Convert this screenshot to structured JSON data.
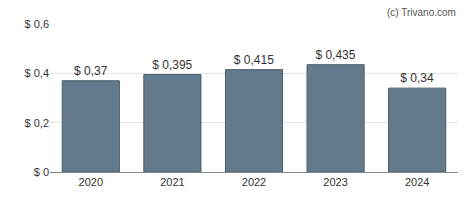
{
  "chart_data": {
    "type": "bar",
    "categories": [
      "2020",
      "2021",
      "2022",
      "2023",
      "2024"
    ],
    "values": [
      0.37,
      0.395,
      0.415,
      0.435,
      0.34
    ],
    "value_labels": [
      "$ 0,37",
      "$ 0,395",
      "$ 0,415",
      "$ 0,435",
      "$ 0,34"
    ],
    "data_labels": true,
    "color": "#627a8c",
    "ylim": [
      0,
      0.6
    ],
    "yticks": [
      {
        "value": 0,
        "label": "$ 0"
      },
      {
        "value": 0.2,
        "label": "$ 0,2"
      },
      {
        "value": 0.4,
        "label": "$ 0,4"
      },
      {
        "value": 0.6,
        "label": "$ 0,6"
      }
    ],
    "grid": true,
    "annotations": [
      "(c) Trivano.com"
    ]
  }
}
